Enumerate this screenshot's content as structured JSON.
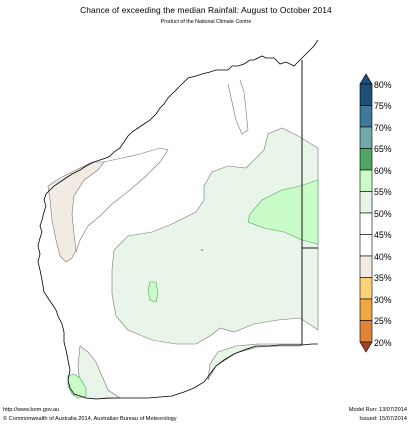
{
  "title": "Chance of exceeding the median Rainfall: August to October 2014",
  "subtitle": "Product of the National Climate Centre",
  "legend": {
    "bands": [
      {
        "label": "80%",
        "color": "#1f4e79"
      },
      {
        "label": "75%",
        "color": "#3b7a98"
      },
      {
        "label": "70%",
        "color": "#73a8a8"
      },
      {
        "label": "65%",
        "color": "#4fa564"
      },
      {
        "label": "60%",
        "color": "#c9fcc6"
      },
      {
        "label": "55%",
        "color": "#e8f4e8"
      },
      {
        "label": "50%",
        "color": "#ffffff"
      },
      {
        "label": "45%",
        "color": "#ffffff"
      },
      {
        "label": "40%",
        "color": "#f1ebe3"
      },
      {
        "label": "35%",
        "color": "#ffd27a"
      },
      {
        "label": "30%",
        "color": "#f2a640"
      },
      {
        "label": "25%",
        "color": "#df8538"
      },
      {
        "label": "20%",
        "color": "#c7662e"
      }
    ],
    "low_color": "#a34322"
  },
  "colors": {
    "green_light": "#e9f5e9",
    "green_mid": "#c9fcc6",
    "brown_light": "#f1ebe3",
    "outline": "#000000",
    "contour": "#777777"
  },
  "footer": {
    "url": "http://www.bom.gov.au",
    "copyright": "©  Commonwealth of Australia 2014, Australian Bureau of Meteorology",
    "model_run": "Model Run: 13/07/2014",
    "issued": "Issued: 15/07/2014"
  }
}
